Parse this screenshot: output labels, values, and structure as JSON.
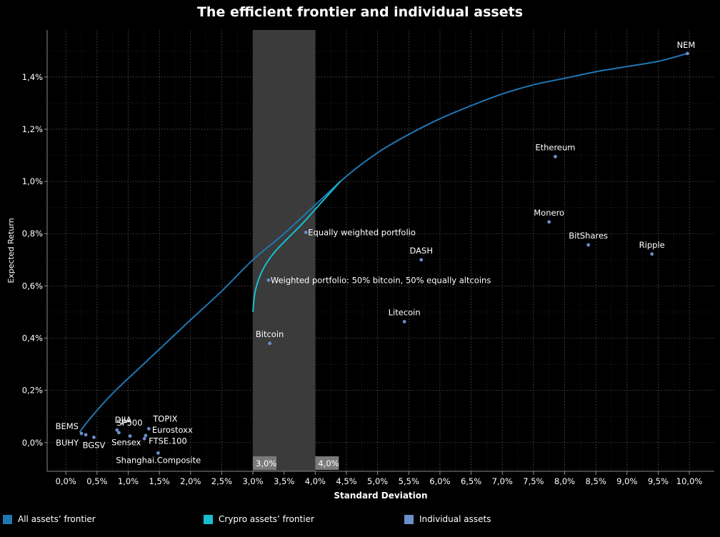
{
  "chart_data": {
    "type": "scatter",
    "title": "The efficient frontier and individual assets",
    "xlabel": "Standard Deviation",
    "ylabel": "Expected Return",
    "xlim": [
      -0.3,
      10.4
    ],
    "ylim": [
      -0.11,
      1.58
    ],
    "x_ticks": [
      0.0,
      0.5,
      1.0,
      1.5,
      2.0,
      2.5,
      3.0,
      3.5,
      4.0,
      4.5,
      5.0,
      5.5,
      6.0,
      6.5,
      7.0,
      7.5,
      8.0,
      8.5,
      9.0,
      9.5,
      10.0
    ],
    "x_tick_labels": [
      "0,0%",
      "0,5%",
      "1,0%",
      "1,5%",
      "2,0%",
      "2,5%",
      "3,0%",
      "3,5%",
      "4,0%",
      "4,5%",
      "5,0%",
      "5,5%",
      "6,0%",
      "6,5%",
      "7,0%",
      "7,5%",
      "8,0%",
      "8,5%",
      "9,0%",
      "9,5%",
      "10,0%"
    ],
    "y_ticks": [
      0.0,
      0.2,
      0.4,
      0.6,
      0.8,
      1.0,
      1.2,
      1.4
    ],
    "y_tick_labels": [
      "0,0%",
      "0,2%",
      "0,4%",
      "0,6%",
      "0,8%",
      "1,0%",
      "1,2%",
      "1,4%"
    ],
    "grid": true,
    "highlight_band": {
      "x_range": [
        3.0,
        4.0
      ],
      "labels": [
        "3,0%",
        "4,0%"
      ]
    },
    "series": [
      {
        "name": "All assets' frontier",
        "type": "line",
        "color": "#1f77b4",
        "x": [
          0.22,
          0.45,
          0.8,
          1.2,
          1.6,
          2.0,
          2.5,
          3.0,
          3.5,
          4.0,
          4.5,
          5.0,
          5.5,
          6.0,
          6.5,
          7.0,
          7.5,
          8.0,
          8.5,
          9.0,
          9.5,
          9.97
        ],
        "y": [
          0.04,
          0.11,
          0.2,
          0.29,
          0.38,
          0.47,
          0.58,
          0.7,
          0.8,
          0.91,
          1.02,
          1.11,
          1.18,
          1.24,
          1.29,
          1.335,
          1.37,
          1.395,
          1.42,
          1.44,
          1.46,
          1.49
        ]
      },
      {
        "name": "Crypro assets' frontier",
        "type": "line",
        "color": "#17becf",
        "x": [
          3.0,
          3.03,
          3.1,
          3.2,
          3.35,
          3.55,
          3.8,
          4.1,
          4.4
        ],
        "y": [
          0.5,
          0.57,
          0.63,
          0.68,
          0.73,
          0.78,
          0.84,
          0.92,
          1.0
        ]
      },
      {
        "name": "Individual assets",
        "type": "scatter",
        "color": "#6a8fc9",
        "points": [
          {
            "label": "NEM",
            "x": 9.97,
            "y": 1.49
          },
          {
            "label": "Ethereum",
            "x": 7.85,
            "y": 1.095
          },
          {
            "label": "Monero",
            "x": 7.75,
            "y": 0.845
          },
          {
            "label": "BitShares",
            "x": 8.38,
            "y": 0.757
          },
          {
            "label": "Ripple",
            "x": 9.4,
            "y": 0.722
          },
          {
            "label": "DASH",
            "x": 5.7,
            "y": 0.7
          },
          {
            "label": "Litecoin",
            "x": 5.43,
            "y": 0.463
          },
          {
            "label": "Equally weighted portfolio",
            "x": 3.85,
            "y": 0.805
          },
          {
            "label": "Weighted portfolio: 50% bitcoin, 50% equally altcoins",
            "x": 3.25,
            "y": 0.622
          },
          {
            "label": "Bitcoin",
            "x": 3.27,
            "y": 0.38
          },
          {
            "label": "BEMS",
            "x": 0.25,
            "y": 0.035
          },
          {
            "label": "BUHY",
            "x": 0.32,
            "y": 0.03
          },
          {
            "label": "BGSV",
            "x": 0.45,
            "y": 0.02
          },
          {
            "label": "DJIA",
            "x": 0.82,
            "y": 0.048
          },
          {
            "label": "SP500",
            "x": 0.85,
            "y": 0.038
          },
          {
            "label": "Sensex",
            "x": 1.03,
            "y": 0.025
          },
          {
            "label": "TOPIX",
            "x": 1.33,
            "y": 0.053
          },
          {
            "label": "Eurostoxx",
            "x": 1.28,
            "y": 0.027
          },
          {
            "label": "FTSE.100",
            "x": 1.26,
            "y": 0.015
          },
          {
            "label": "Shanghai.Composite",
            "x": 1.48,
            "y": -0.04
          }
        ]
      }
    ],
    "legend": {
      "placement": "bottom",
      "entries": [
        {
          "label": "All assets’ frontier",
          "color": "#1f77b4"
        },
        {
          "label": "Crypro assets’ frontier",
          "color": "#17becf"
        },
        {
          "label": "Individual assets",
          "color": "#6a8fc9"
        }
      ]
    }
  }
}
